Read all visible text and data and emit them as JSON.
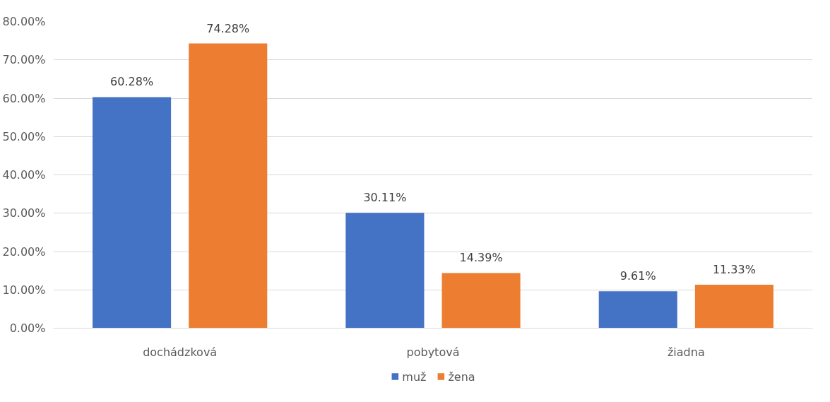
{
  "chart_data": {
    "type": "bar",
    "categories": [
      "dochádzková",
      "pobytová",
      "žiadna"
    ],
    "series": [
      {
        "name": "muž",
        "color": "#4472c4",
        "values": [
          60.28,
          30.11,
          9.61
        ],
        "value_labels": [
          "60.28%",
          "30.11%",
          "9.61%"
        ]
      },
      {
        "name": "žena",
        "color": "#ed7d31",
        "values": [
          74.28,
          14.39,
          11.33
        ],
        "value_labels": [
          "74.28%",
          "14.39%",
          "11.33%"
        ]
      }
    ],
    "ylim": [
      0,
      80
    ],
    "yticks": [
      {
        "value": 0,
        "label": "0.00%"
      },
      {
        "value": 10,
        "label": "10.00%"
      },
      {
        "value": 20,
        "label": "20.00%"
      },
      {
        "value": 30,
        "label": "30.00%"
      },
      {
        "value": 40,
        "label": "40.00%"
      },
      {
        "value": 50,
        "label": "50.00%"
      },
      {
        "value": 60,
        "label": "60.00%"
      },
      {
        "value": 70,
        "label": "70.00%"
      },
      {
        "value": 80,
        "label": "80.00%"
      }
    ],
    "grid": "y",
    "legend": "bottom"
  }
}
